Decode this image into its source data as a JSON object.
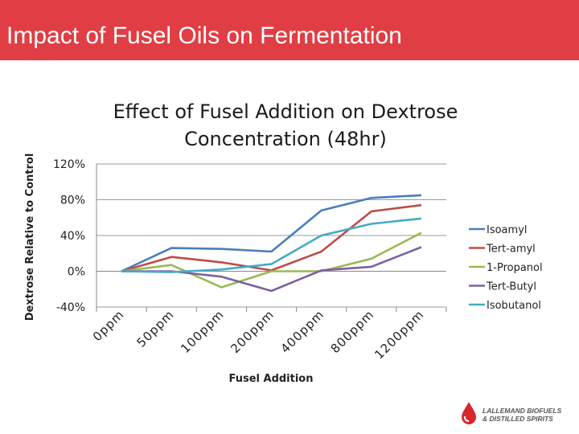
{
  "header": {
    "title": "Impact of Fusel Oils on Fermentation",
    "color": "#e03e44"
  },
  "logo": {
    "line1": "LALLEMAND BIOFUELS",
    "line2": "& DISTILLED SPIRITS"
  },
  "chart_data": {
    "type": "line",
    "title_lines": [
      "Effect of Fusel Addition on Dextrose",
      "Concentration (48hr)"
    ],
    "xlabel": "Fusel Addition",
    "ylabel": "Dextrose Relative to Control",
    "categories": [
      "0ppm",
      "50ppm",
      "100ppm",
      "200ppm",
      "400ppm",
      "800ppm",
      "1200ppm"
    ],
    "yticks": [
      "120%",
      "80%",
      "40%",
      "0%",
      "-40%"
    ],
    "ylim": [
      -40,
      120
    ],
    "grid": true,
    "legend_position": "right",
    "series": [
      {
        "name": "Isoamyl",
        "color": "#4a7ebb",
        "values": [
          0,
          26,
          25,
          22,
          68,
          82,
          85
        ]
      },
      {
        "name": "Tert-amyl",
        "color": "#be4b48",
        "values": [
          0,
          16,
          10,
          1,
          22,
          67,
          74
        ]
      },
      {
        "name": "1-Propanol",
        "color": "#98b954",
        "values": [
          0,
          7,
          -18,
          0,
          0,
          14,
          43
        ]
      },
      {
        "name": "Tert-Butyl",
        "color": "#7d60a0",
        "values": [
          0,
          0,
          -6,
          -22,
          1,
          5,
          27
        ]
      },
      {
        "name": "Isobutanol",
        "color": "#46aac4",
        "values": [
          0,
          -1,
          2,
          8,
          40,
          53,
          59
        ]
      }
    ]
  }
}
